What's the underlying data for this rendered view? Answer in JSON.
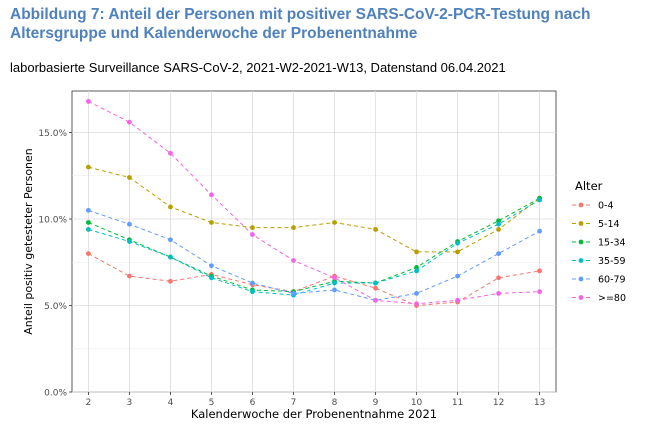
{
  "figure": {
    "title": "Abbildung 7: Anteil der Personen mit positiver SARS-CoV-2-PCR-Testung nach Altersgruppe und Kalenderwoche der Probenentnahme",
    "subtitle": "laborbasierte Surveillance SARS-CoV-2, 2021-W2-2021-W13, Datenstand 06.04.2021"
  },
  "chart_data": {
    "type": "line",
    "title": "",
    "xlabel": "Kalenderwoche der Probenentnahme 2021",
    "ylabel": "Anteil positiv getesteter Personen",
    "x": [
      2,
      3,
      4,
      5,
      6,
      7,
      8,
      9,
      10,
      11,
      12,
      13
    ],
    "xlim": [
      1.6,
      13.4
    ],
    "ylim": [
      0,
      17.4
    ],
    "yticks": [
      0,
      5,
      10,
      15
    ],
    "ytick_labels": [
      "0.0%",
      "5.0%",
      "10.0%",
      "15.0%"
    ],
    "xtick_labels": [
      "2",
      "3",
      "4",
      "5",
      "6",
      "7",
      "8",
      "9",
      "10",
      "11",
      "12",
      "13"
    ],
    "grid": true,
    "line_style": "dashed",
    "legend_title": "Alter",
    "legend_position": "right",
    "series": [
      {
        "name": "0-4",
        "color": "#F8766D",
        "values": [
          8.0,
          6.7,
          6.4,
          6.8,
          6.2,
          5.8,
          6.7,
          6.0,
          5.0,
          5.2,
          6.6,
          7.0
        ]
      },
      {
        "name": "5-14",
        "color": "#B79F00",
        "values": [
          13.0,
          12.4,
          10.7,
          9.8,
          9.5,
          9.5,
          9.8,
          9.4,
          8.1,
          8.1,
          9.4,
          11.2
        ]
      },
      {
        "name": "15-34",
        "color": "#00BA38",
        "values": [
          9.8,
          8.8,
          7.8,
          6.7,
          5.9,
          5.8,
          6.4,
          6.3,
          7.2,
          8.7,
          9.9,
          11.2
        ]
      },
      {
        "name": "35-59",
        "color": "#00BFC4",
        "values": [
          9.4,
          8.7,
          7.8,
          6.6,
          5.8,
          5.6,
          6.3,
          6.3,
          7.0,
          8.6,
          9.7,
          11.1
        ]
      },
      {
        "name": "60-79",
        "color": "#619CFF",
        "values": [
          10.5,
          9.7,
          8.8,
          7.3,
          6.3,
          5.7,
          5.9,
          5.3,
          5.7,
          6.7,
          8.0,
          9.3
        ]
      },
      {
        "name": ">=80",
        "color": "#F564E3",
        "values": [
          16.8,
          15.6,
          13.8,
          11.4,
          9.1,
          7.6,
          6.6,
          5.3,
          5.1,
          5.3,
          5.7,
          5.8
        ]
      }
    ]
  }
}
